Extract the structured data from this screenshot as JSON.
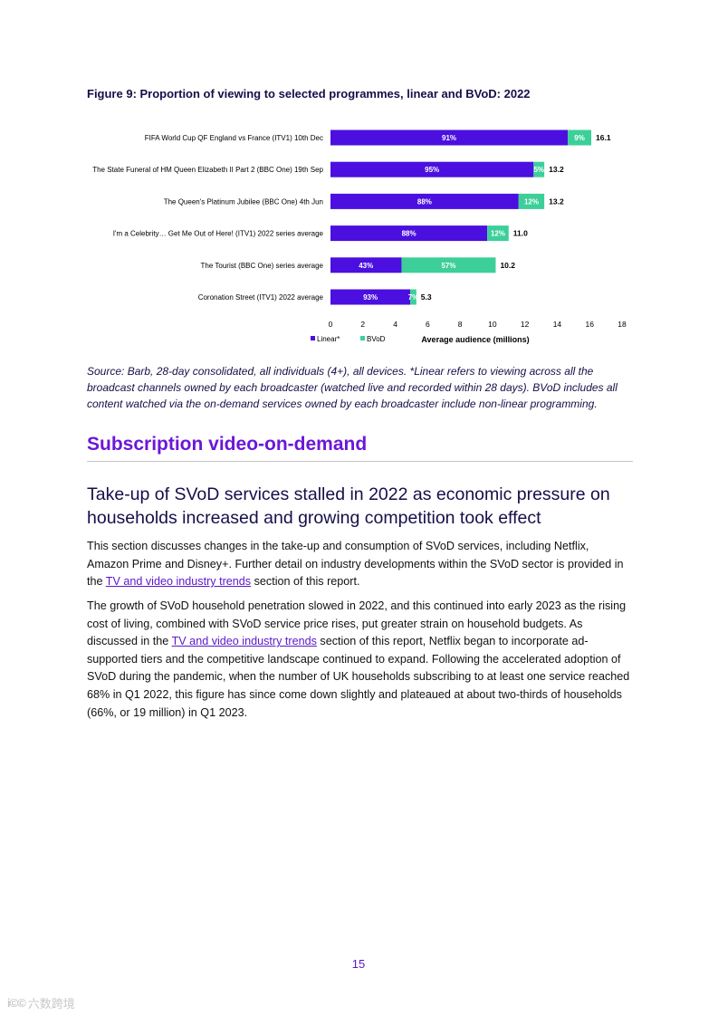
{
  "figure": {
    "title": "Figure 9: Proportion of viewing to selected programmes, linear and BVoD: 2022",
    "source": "Source: Barb, 28-day consolidated, all individuals (4+), all devices. *Linear refers to viewing across all the broadcast channels owned by each broadcaster (watched live and recorded within 28 days). BVoD includes all content watched via the on-demand services owned by each broadcaster include non-linear programming."
  },
  "chart_data": {
    "type": "bar",
    "orientation": "horizontal",
    "stacked": true,
    "categories": [
      "FIFA World Cup QF England vs France (ITV1) 10th Dec",
      "The State Funeral of HM Queen Elizabeth II Part 2 (BBC One) 19th Sep",
      "The Queen's Platinum Jubilee (BBC One) 4th Jun",
      "I'm a Celebrity… Get Me Out of Here! (ITV1) 2022 series average",
      "The Tourist (BBC One) series average",
      "Coronation Street (ITV1) 2022 average"
    ],
    "totals": [
      16.1,
      13.2,
      13.2,
      11.0,
      10.2,
      5.3
    ],
    "total_labels": [
      "16.1",
      "13.2",
      "13.2",
      "11.0",
      "10.2",
      "5.3"
    ],
    "series": [
      {
        "name": "Linear*",
        "color": "#4b0fe0",
        "share_pct": [
          91,
          95,
          88,
          88,
          43,
          93
        ],
        "labels": [
          "91%",
          "95%",
          "88%",
          "88%",
          "43%",
          "93%"
        ]
      },
      {
        "name": "BVoD",
        "color": "#3ccf9a",
        "share_pct": [
          9,
          5,
          12,
          12,
          57,
          7
        ],
        "labels": [
          "9%",
          "5%",
          "12%",
          "12%",
          "57%",
          "7%"
        ]
      }
    ],
    "xlabel": "Average audience (millions)",
    "xlim": [
      0,
      18
    ],
    "xticks": [
      0,
      2,
      4,
      6,
      8,
      10,
      12,
      14,
      16,
      18
    ],
    "grid": false,
    "legend_position": "bottom-left"
  },
  "section": {
    "heading": "Subscription video-on-demand",
    "subheading": "Take-up of SVoD services stalled in 2022 as economic pressure on households increased and growing competition took effect"
  },
  "paragraphs": {
    "p1": {
      "before": "This section discusses changes in the take-up and consumption of SVoD services, including Netflix, Amazon Prime and Disney+. Further detail on industry developments within the SVoD sector is provided in the ",
      "link": "TV and video industry trends",
      "after": " section of this report."
    },
    "p2": {
      "before": "The growth of SVoD household penetration slowed in 2022, and this continued into early 2023 as the rising cost of living, combined with SVoD service price rises, put greater strain on household budgets. As discussed in the ",
      "link": "TV and video industry trends",
      "after": " section of this report, Netflix began to incorporate ad-supported tiers and the competitive landscape continued to expand. Following the accelerated adoption of SVoD during the pandemic, when the number of UK households subscribing to at least one service reached 68% in Q1 2022, this figure has since come down slightly and plateaued at about two-thirds of households (66%, or 19 million) in Q1 2023."
    }
  },
  "page_number": "15",
  "watermark": {
    "logo": "i©©",
    "text": "六数跨境"
  }
}
